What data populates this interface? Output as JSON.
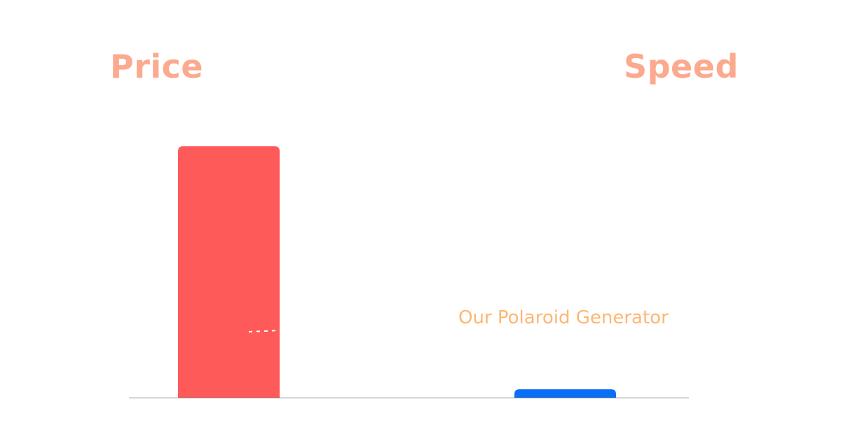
{
  "chart_data": {
    "type": "bar",
    "title": "",
    "categories": [
      "Price",
      "Speed"
    ],
    "values": [
      100,
      3.3
    ],
    "colors": [
      "#ff5a5a",
      "#0a6ff7"
    ],
    "annotation": "Our Polaroid Generator",
    "ylim": [
      0,
      100
    ],
    "grid": false,
    "axis_color": "#888888"
  },
  "headings": {
    "left": "Price",
    "right": "Speed"
  },
  "colors": {
    "heading": "#fbaa8f",
    "annotation": "#fdb773"
  }
}
